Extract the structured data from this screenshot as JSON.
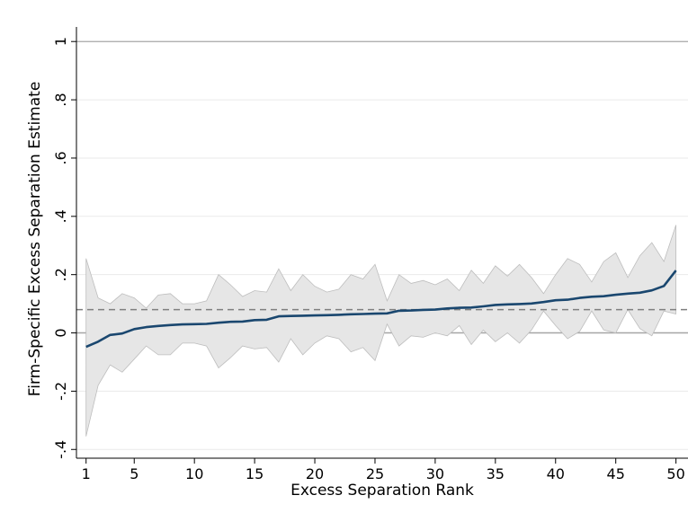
{
  "chart_data": {
    "type": "line",
    "xlabel": "Excess Separation Rank",
    "ylabel": "Firm-Specific Excess Separation Estimate",
    "xlim": [
      0.2,
      51
    ],
    "ylim": [
      -0.43,
      1.05
    ],
    "x_ticks": [
      1,
      5,
      10,
      15,
      20,
      25,
      30,
      35,
      40,
      45,
      50
    ],
    "x_tick_labels": [
      "1",
      "5",
      "10",
      "15",
      "20",
      "25",
      "30",
      "35",
      "40",
      "45",
      "50"
    ],
    "y_ticks": [
      1,
      0.8,
      0.6,
      0.4,
      0.2,
      0,
      -0.2,
      -0.4
    ],
    "y_tick_labels": [
      "1",
      ".8",
      ".6",
      ".4",
      ".2",
      "0",
      "-.2",
      "-.4"
    ],
    "grid": "horizontal",
    "reference_line_y": 0.08,
    "colors": {
      "line": "#1a476f",
      "band": "#e6e6e6",
      "band_edge": "#bdbdbd",
      "reference": "#7f7f7f",
      "grid": "#eaeaea",
      "zero_line": "#a6a6a6",
      "top_line": "#a6a6a6"
    },
    "x": [
      1,
      2,
      3,
      4,
      5,
      6,
      7,
      8,
      9,
      10,
      11,
      12,
      13,
      14,
      15,
      16,
      17,
      18,
      19,
      20,
      21,
      22,
      23,
      24,
      25,
      26,
      27,
      28,
      29,
      30,
      31,
      32,
      33,
      34,
      35,
      36,
      37,
      38,
      39,
      40,
      41,
      42,
      43,
      44,
      45,
      46,
      47,
      48,
      49,
      50
    ],
    "series": [
      {
        "values": [
          -0.048,
          -0.03,
          -0.007,
          -0.002,
          0.013,
          0.02,
          0.024,
          0.027,
          0.029,
          0.03,
          0.031,
          0.035,
          0.038,
          0.039,
          0.044,
          0.045,
          0.057,
          0.058,
          0.059,
          0.06,
          0.061,
          0.062,
          0.064,
          0.065,
          0.066,
          0.067,
          0.076,
          0.077,
          0.079,
          0.08,
          0.084,
          0.086,
          0.087,
          0.091,
          0.096,
          0.098,
          0.099,
          0.101,
          0.106,
          0.112,
          0.114,
          0.12,
          0.124,
          0.126,
          0.131,
          0.135,
          0.138,
          0.146,
          0.161,
          0.214
        ]
      }
    ],
    "ci_upper": [
      0.255,
      0.12,
      0.1,
      0.135,
      0.12,
      0.085,
      0.13,
      0.135,
      0.1,
      0.1,
      0.11,
      0.2,
      0.165,
      0.125,
      0.145,
      0.14,
      0.22,
      0.145,
      0.2,
      0.16,
      0.14,
      0.15,
      0.2,
      0.185,
      0.235,
      0.11,
      0.2,
      0.17,
      0.18,
      0.165,
      0.185,
      0.145,
      0.215,
      0.17,
      0.23,
      0.195,
      0.235,
      0.19,
      0.135,
      0.2,
      0.255,
      0.235,
      0.175,
      0.245,
      0.275,
      0.19,
      0.265,
      0.31,
      0.245,
      0.37
    ],
    "ci_lower": [
      -0.355,
      -0.18,
      -0.11,
      -0.135,
      -0.09,
      -0.045,
      -0.075,
      -0.075,
      -0.035,
      -0.035,
      -0.045,
      -0.12,
      -0.085,
      -0.045,
      -0.055,
      -0.05,
      -0.1,
      -0.02,
      -0.075,
      -0.035,
      -0.01,
      -0.02,
      -0.065,
      -0.05,
      -0.095,
      0.03,
      -0.045,
      -0.01,
      -0.015,
      0.0,
      -0.01,
      0.025,
      -0.04,
      0.01,
      -0.03,
      0.0,
      -0.035,
      0.01,
      0.075,
      0.025,
      -0.02,
      0.005,
      0.075,
      0.01,
      0.0,
      0.08,
      0.015,
      -0.01,
      0.075,
      0.065
    ]
  }
}
